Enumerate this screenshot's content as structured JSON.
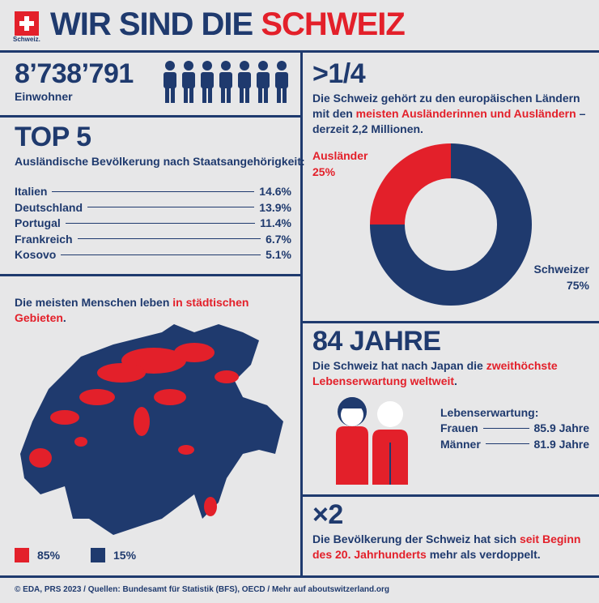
{
  "header": {
    "logo": "Schweiz.",
    "title_navy": "WIR SIND DIE",
    "title_red": "SCHWEIZ"
  },
  "population": {
    "value": "8’738’791",
    "label": "Einwohner"
  },
  "top5": {
    "title": "TOP 5",
    "subtitle": "Ausländische Bevölkerung nach Staatsangehörigkeit:",
    "rows": [
      [
        "Italien",
        "14.6%"
      ],
      [
        "Deutschland",
        "13.9%"
      ],
      [
        "Portugal",
        "11.4%"
      ],
      [
        "Frankreich",
        "6.7%"
      ],
      [
        "Kosovo",
        "5.1%"
      ]
    ]
  },
  "foreigners": {
    "headline": ">1/4",
    "text": [
      "Die Schweiz gehört zu den europäischen Ländern mit den ",
      "meisten Ausländerinnen und Ausländern",
      " – derzeit 2,2 Millionen."
    ]
  },
  "chart_data": {
    "type": "donut",
    "categories": [
      "Ausländer",
      "Schweizer"
    ],
    "values": [
      25,
      75
    ],
    "value_labels": [
      "25%",
      "75%"
    ],
    "colors": [
      "#e3202a",
      "#1f3a6e"
    ]
  },
  "urban": {
    "text": [
      "Die meisten Menschen leben ",
      "in städtischen Gebieten",
      "."
    ],
    "legend": [
      "85%",
      "15%"
    ]
  },
  "life": {
    "headline": "84 JAHRE",
    "text": [
      "Die Schweiz hat nach Japan die ",
      "zweithöchste Lebenserwartung weltweit",
      "."
    ],
    "label": "Lebenserwartung:",
    "rows": [
      [
        "Frauen",
        "85.9 Jahre"
      ],
      [
        "Männer",
        "81.9 Jahre"
      ]
    ]
  },
  "doubling": {
    "headline": "×2",
    "text": [
      "Die Bevölkerung der Schweiz hat sich ",
      "seit Beginn des 20. Jahrhunderts",
      " mehr als verdoppelt."
    ]
  },
  "footer": "© EDA, PRS 2023 / Quellen: Bundesamt für Statistik (BFS), OECD / Mehr auf aboutswitzerland.org"
}
